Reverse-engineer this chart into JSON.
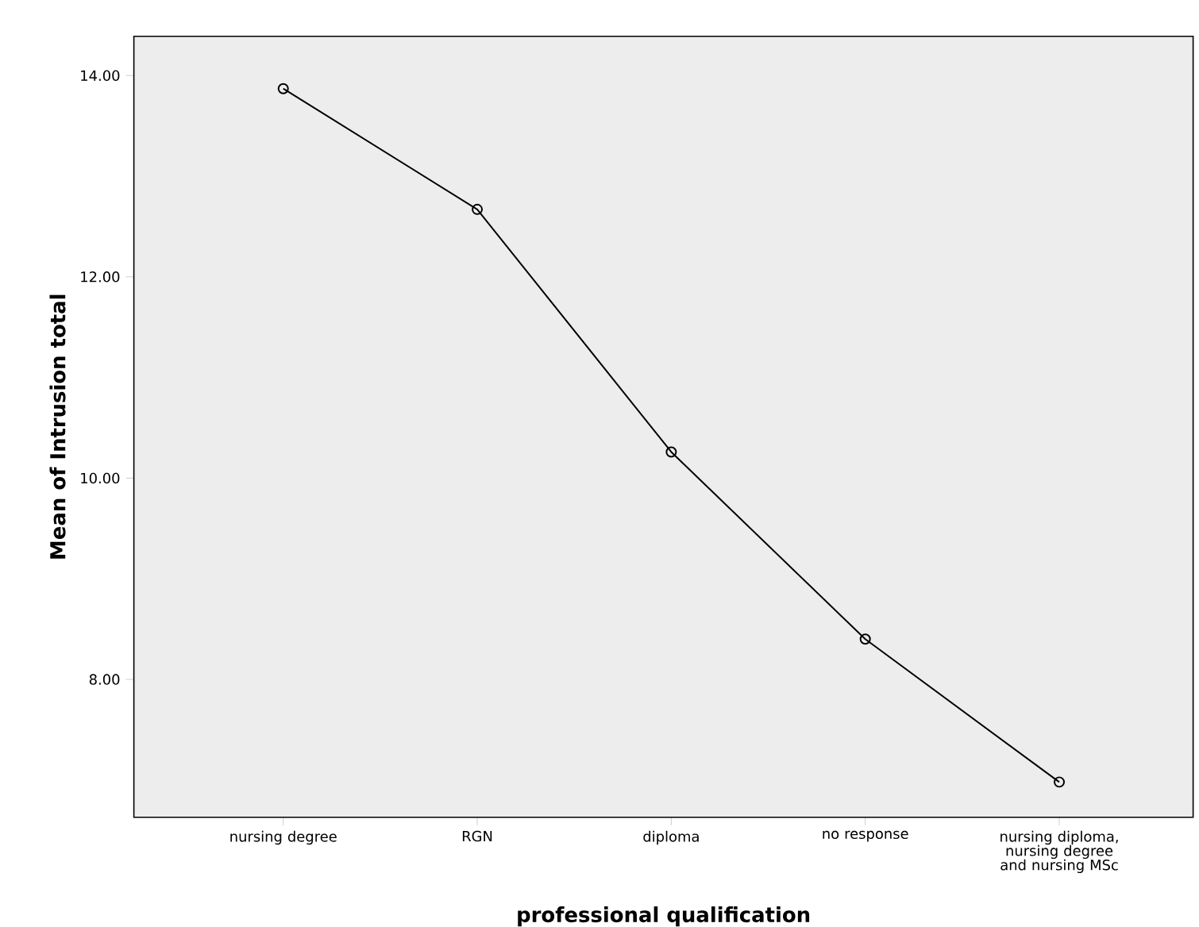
{
  "chart_data": {
    "type": "line",
    "xlabel": "professional qualification",
    "ylabel": "Mean of Intrusion total",
    "categories": [
      "nursing degree",
      "RGN",
      "diploma",
      "no response",
      "nursing diploma, nursing degree and nursing MSc"
    ],
    "series": [
      {
        "color": "#000000",
        "values": [
          13.87,
          12.67,
          10.26,
          8.4,
          6.98
        ]
      }
    ],
    "ylim": [
      6.63,
      14.39
    ],
    "yticks": [
      {
        "value": 8,
        "label": "8.00"
      },
      {
        "value": 10,
        "label": "10.00"
      },
      {
        "value": 12,
        "label": "12.00"
      },
      {
        "value": 14,
        "label": "14.00"
      }
    ],
    "marker": "circle",
    "line_style": "solid",
    "grid": false
  }
}
